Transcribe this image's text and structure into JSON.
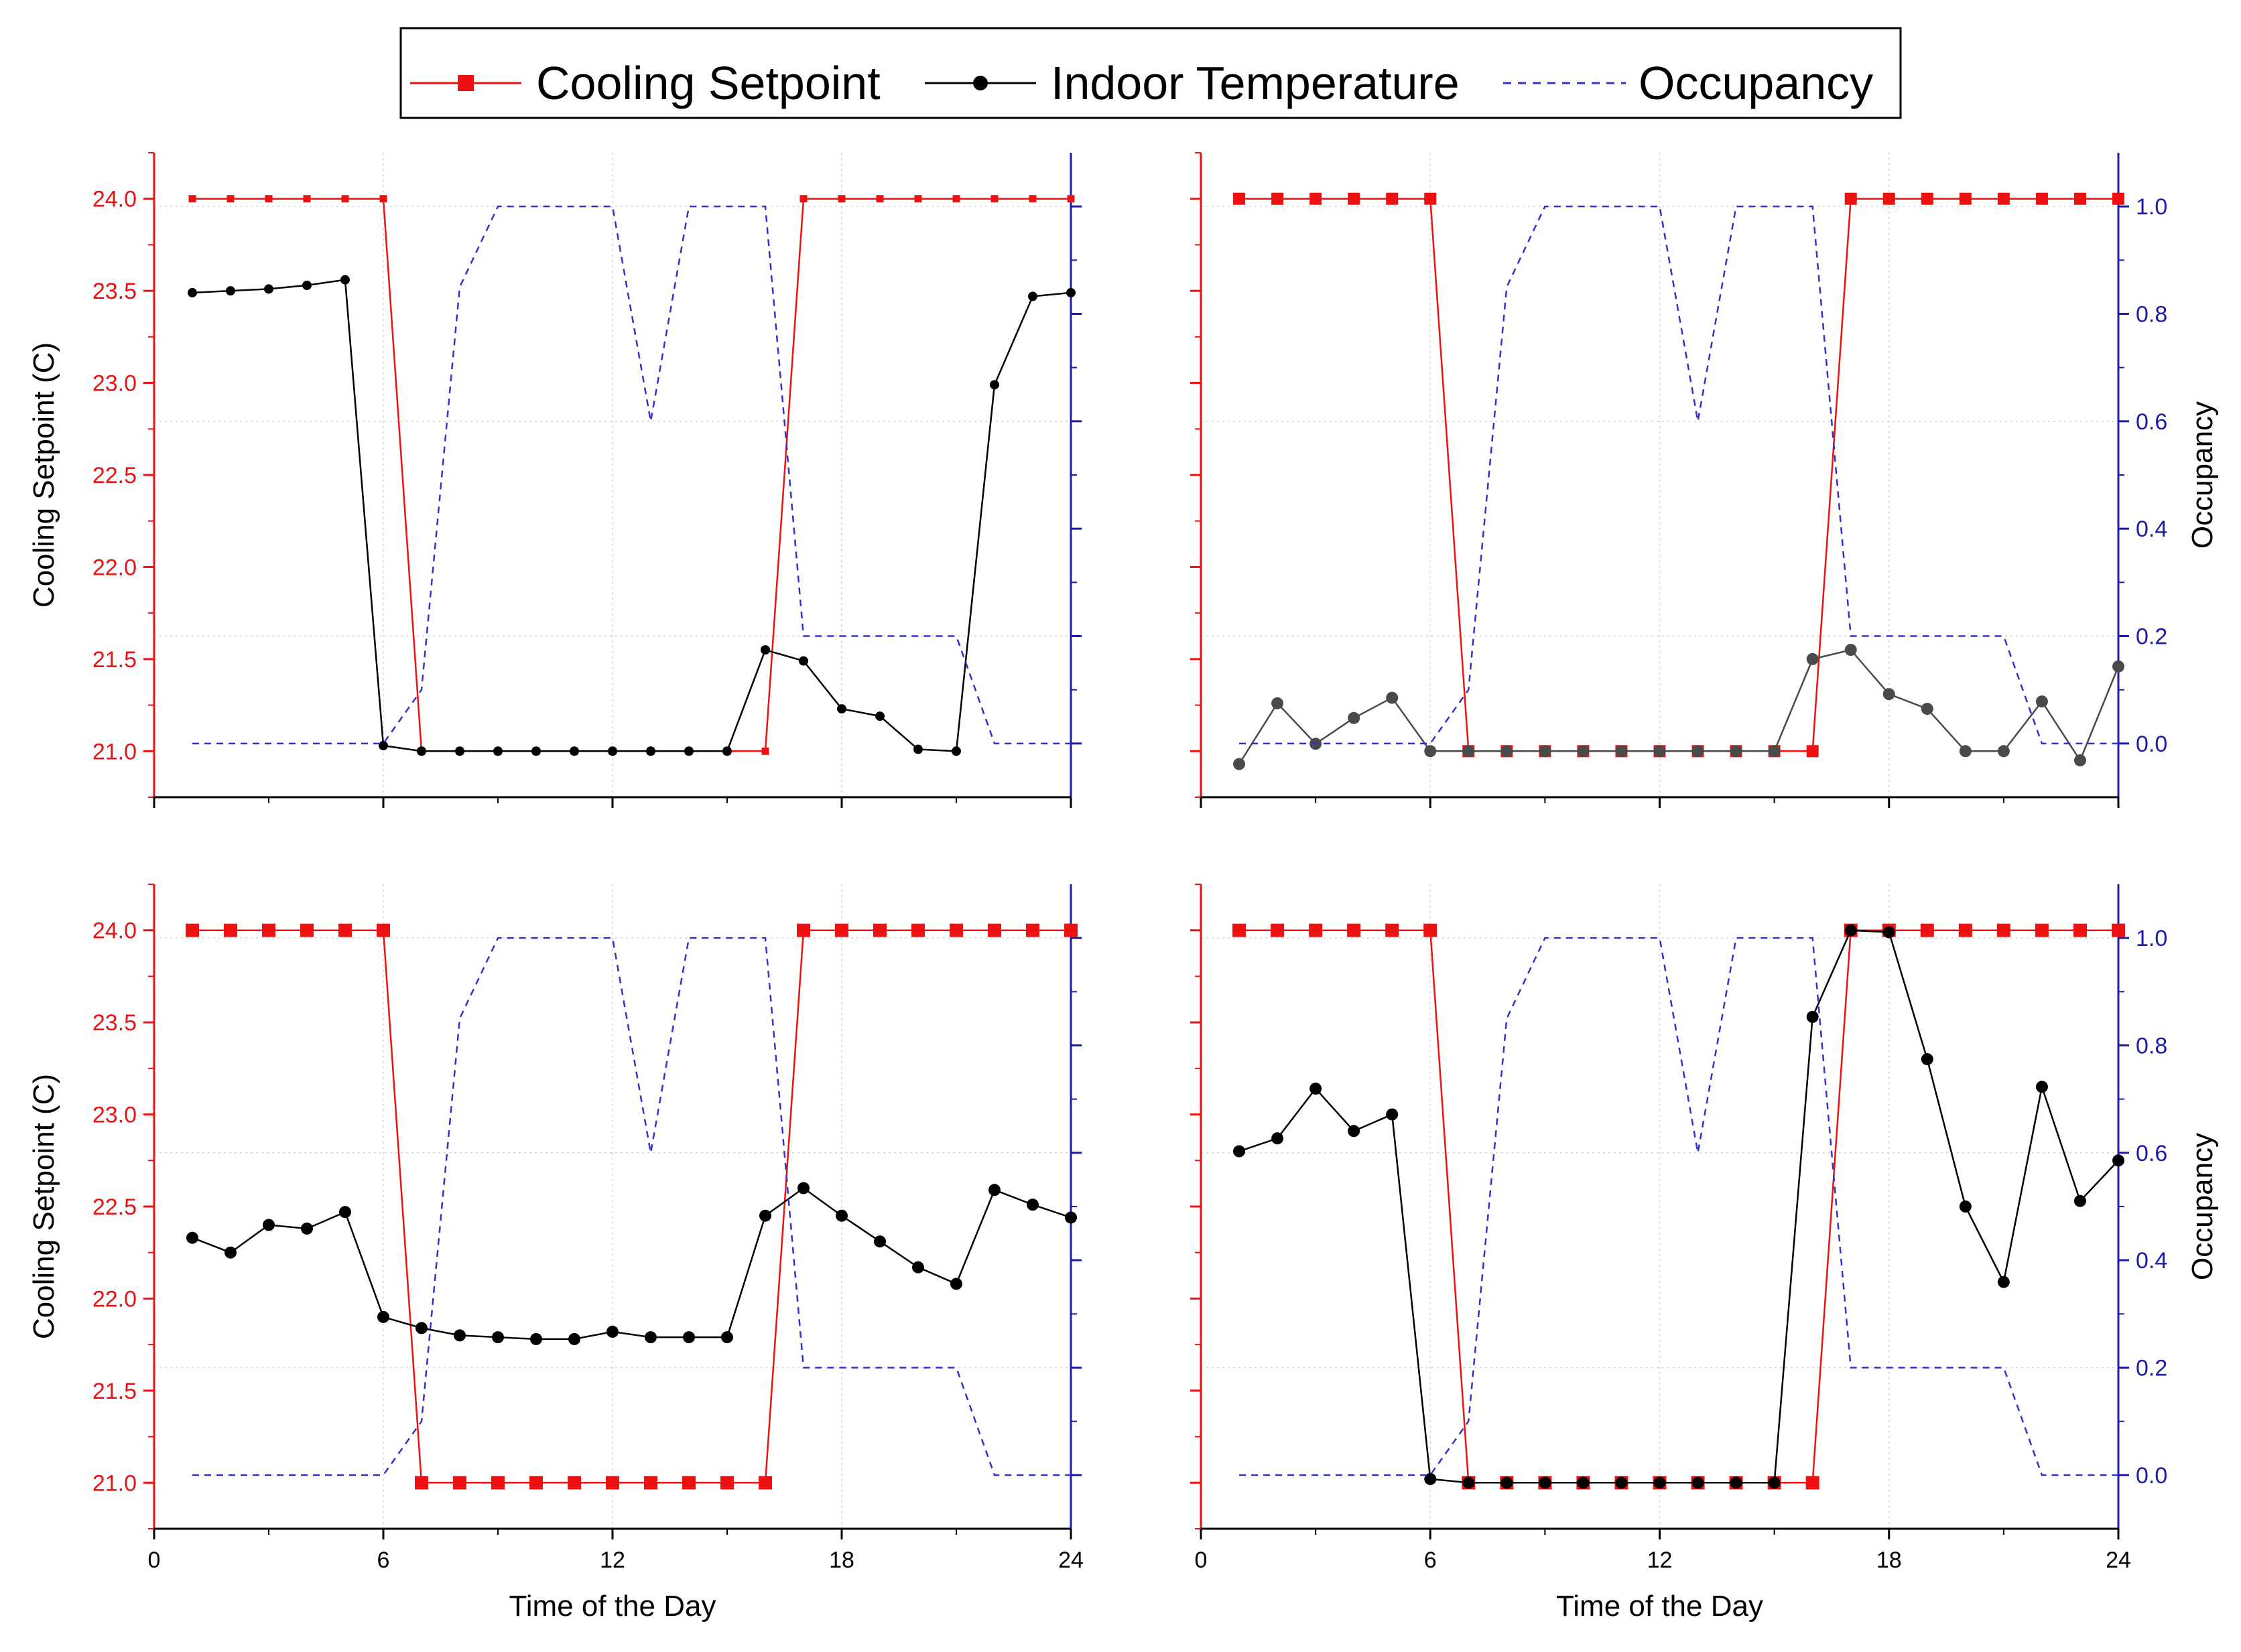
{
  "legend": {
    "cooling": "Cooling Setpoint",
    "indoor": "Indoor Temperature",
    "occupancy": "Occupancy"
  },
  "colors": {
    "cooling": "#ee1111",
    "indoor": "#000000",
    "indoor_alt": "#4a4a4a",
    "occupancy": "#3333cc",
    "left_axis": "#ee1111",
    "right_axis": "#1c1ca8"
  },
  "chart_data": [
    {
      "type": "line",
      "panel": "top-left",
      "xlabel": "",
      "ylabel": "Cooling Setpoint (C)",
      "y2label": "",
      "xlim": [
        0,
        24
      ],
      "ylim": [
        20.75,
        24.25
      ],
      "y2lim": [
        -0.1,
        1.1
      ],
      "xticks": [],
      "yticks": [
        "21.0",
        "21.5",
        "22.0",
        "22.5",
        "23.0",
        "23.5",
        "24.0"
      ],
      "y2ticks": [],
      "series": [
        {
          "name": "Cooling Setpoint",
          "x": [
            1,
            2,
            3,
            4,
            5,
            6,
            7,
            8,
            9,
            10,
            11,
            12,
            13,
            14,
            15,
            16,
            17,
            18,
            19,
            20,
            21,
            22,
            23,
            24
          ],
          "values": [
            24,
            24,
            24,
            24,
            24,
            24,
            21,
            21,
            21,
            21,
            21,
            21,
            21,
            21,
            21,
            21,
            24,
            24,
            24,
            24,
            24,
            24,
            24,
            24
          ]
        },
        {
          "name": "Indoor Temperature",
          "x": [
            1,
            2,
            3,
            4,
            5,
            6,
            7,
            8,
            9,
            10,
            11,
            12,
            13,
            14,
            15,
            16,
            17,
            18,
            19,
            20,
            21,
            22,
            23,
            24
          ],
          "values": [
            23.49,
            23.5,
            23.51,
            23.53,
            23.56,
            21.03,
            21.0,
            21.0,
            21.0,
            21.0,
            21.0,
            21.0,
            21.0,
            21.0,
            21.0,
            21.55,
            21.49,
            21.23,
            21.19,
            21.01,
            21.0,
            22.99,
            23.47,
            23.49
          ]
        },
        {
          "name": "Occupancy",
          "x": [
            1,
            2,
            3,
            4,
            5,
            6,
            7,
            8,
            9,
            10,
            11,
            12,
            13,
            14,
            15,
            16,
            17,
            18,
            19,
            20,
            21,
            22,
            23,
            24
          ],
          "values": [
            0,
            0,
            0,
            0,
            0,
            0,
            0.1,
            0.85,
            1.0,
            1.0,
            1.0,
            1.0,
            0.6,
            1.0,
            1.0,
            1.0,
            0.2,
            0.2,
            0.2,
            0.2,
            0.2,
            0,
            0,
            0
          ]
        }
      ]
    },
    {
      "type": "line",
      "panel": "top-right",
      "xlabel": "",
      "ylabel": "",
      "y2label": "Occupancy",
      "xlim": [
        0,
        24
      ],
      "ylim": [
        20.75,
        24.25
      ],
      "y2lim": [
        -0.1,
        1.1
      ],
      "xticks": [],
      "yticks": [],
      "y2ticks": [
        "0.0",
        "0.2",
        "0.4",
        "0.6",
        "0.8",
        "1.0"
      ],
      "series": [
        {
          "name": "Cooling Setpoint",
          "x": [
            1,
            2,
            3,
            4,
            5,
            6,
            7,
            8,
            9,
            10,
            11,
            12,
            13,
            14,
            15,
            16,
            17,
            18,
            19,
            20,
            21,
            22,
            23,
            24
          ],
          "values": [
            24,
            24,
            24,
            24,
            24,
            24,
            21,
            21,
            21,
            21,
            21,
            21,
            21,
            21,
            21,
            21,
            24,
            24,
            24,
            24,
            24,
            24,
            24,
            24
          ]
        },
        {
          "name": "Indoor Temperature",
          "x": [
            1,
            2,
            3,
            4,
            5,
            6,
            7,
            8,
            9,
            10,
            11,
            12,
            13,
            14,
            15,
            16,
            17,
            18,
            19,
            20,
            21,
            22,
            23,
            24
          ],
          "values": [
            20.93,
            21.26,
            21.04,
            21.18,
            21.29,
            21.0,
            21.0,
            21.0,
            21.0,
            21.0,
            21.0,
            21.0,
            21.0,
            21.0,
            21.0,
            21.5,
            21.55,
            21.31,
            21.23,
            21.0,
            21.0,
            21.27,
            20.95,
            21.46
          ]
        },
        {
          "name": "Occupancy",
          "x": [
            1,
            2,
            3,
            4,
            5,
            6,
            7,
            8,
            9,
            10,
            11,
            12,
            13,
            14,
            15,
            16,
            17,
            18,
            19,
            20,
            21,
            22,
            23,
            24
          ],
          "values": [
            0,
            0,
            0,
            0,
            0,
            0,
            0.1,
            0.85,
            1.0,
            1.0,
            1.0,
            1.0,
            0.6,
            1.0,
            1.0,
            1.0,
            0.2,
            0.2,
            0.2,
            0.2,
            0.2,
            0,
            0,
            0
          ]
        }
      ]
    },
    {
      "type": "line",
      "panel": "bottom-left",
      "xlabel": "Time of the Day",
      "ylabel": "Cooling Setpoint (C)",
      "y2label": "",
      "xlim": [
        0,
        24
      ],
      "ylim": [
        20.75,
        24.25
      ],
      "y2lim": [
        -0.1,
        1.1
      ],
      "xticks": [
        "0",
        "6",
        "12",
        "18",
        "24"
      ],
      "yticks": [
        "21.0",
        "21.5",
        "22.0",
        "22.5",
        "23.0",
        "23.5",
        "24.0"
      ],
      "y2ticks": [],
      "series": [
        {
          "name": "Cooling Setpoint",
          "x": [
            1,
            2,
            3,
            4,
            5,
            6,
            7,
            8,
            9,
            10,
            11,
            12,
            13,
            14,
            15,
            16,
            17,
            18,
            19,
            20,
            21,
            22,
            23,
            24
          ],
          "values": [
            24,
            24,
            24,
            24,
            24,
            24,
            21,
            21,
            21,
            21,
            21,
            21,
            21,
            21,
            21,
            21,
            24,
            24,
            24,
            24,
            24,
            24,
            24,
            24
          ]
        },
        {
          "name": "Indoor Temperature",
          "x": [
            1,
            2,
            3,
            4,
            5,
            6,
            7,
            8,
            9,
            10,
            11,
            12,
            13,
            14,
            15,
            16,
            17,
            18,
            19,
            20,
            21,
            22,
            23,
            24
          ],
          "values": [
            22.33,
            22.25,
            22.4,
            22.38,
            22.47,
            21.9,
            21.84,
            21.8,
            21.79,
            21.78,
            21.78,
            21.82,
            21.79,
            21.79,
            21.79,
            22.45,
            22.6,
            22.45,
            22.31,
            22.17,
            22.08,
            22.59,
            22.51,
            22.44
          ]
        },
        {
          "name": "Occupancy",
          "x": [
            1,
            2,
            3,
            4,
            5,
            6,
            7,
            8,
            9,
            10,
            11,
            12,
            13,
            14,
            15,
            16,
            17,
            18,
            19,
            20,
            21,
            22,
            23,
            24
          ],
          "values": [
            0,
            0,
            0,
            0,
            0,
            0,
            0.1,
            0.85,
            1.0,
            1.0,
            1.0,
            1.0,
            0.6,
            1.0,
            1.0,
            1.0,
            0.2,
            0.2,
            0.2,
            0.2,
            0.2,
            0,
            0,
            0
          ]
        }
      ]
    },
    {
      "type": "line",
      "panel": "bottom-right",
      "xlabel": "Time of the Day",
      "ylabel": "",
      "y2label": "Occupancy",
      "xlim": [
        0,
        24
      ],
      "ylim": [
        20.75,
        24.25
      ],
      "y2lim": [
        -0.1,
        1.1
      ],
      "xticks": [
        "0",
        "6",
        "12",
        "18",
        "24"
      ],
      "yticks": [],
      "y2ticks": [
        "0.0",
        "0.2",
        "0.4",
        "0.6",
        "0.8",
        "1.0"
      ],
      "series": [
        {
          "name": "Cooling Setpoint",
          "x": [
            1,
            2,
            3,
            4,
            5,
            6,
            7,
            8,
            9,
            10,
            11,
            12,
            13,
            14,
            15,
            16,
            17,
            18,
            19,
            20,
            21,
            22,
            23,
            24
          ],
          "values": [
            24,
            24,
            24,
            24,
            24,
            24,
            21,
            21,
            21,
            21,
            21,
            21,
            21,
            21,
            21,
            21,
            24,
            24,
            24,
            24,
            24,
            24,
            24,
            24
          ]
        },
        {
          "name": "Indoor Temperature",
          "x": [
            1,
            2,
            3,
            4,
            5,
            6,
            7,
            8,
            9,
            10,
            11,
            12,
            13,
            14,
            15,
            16,
            17,
            18,
            19,
            20,
            21,
            22,
            23,
            24
          ],
          "values": [
            22.8,
            22.87,
            23.14,
            22.91,
            23.0,
            21.02,
            21.0,
            21.0,
            21.0,
            21.0,
            21.0,
            21.0,
            21.0,
            21.0,
            21.0,
            23.53,
            24.0,
            23.99,
            23.3,
            22.5,
            22.09,
            23.15,
            22.53,
            22.75
          ]
        },
        {
          "name": "Occupancy",
          "x": [
            1,
            2,
            3,
            4,
            5,
            6,
            7,
            8,
            9,
            10,
            11,
            12,
            13,
            14,
            15,
            16,
            17,
            18,
            19,
            20,
            21,
            22,
            23,
            24
          ],
          "values": [
            0,
            0,
            0,
            0,
            0,
            0,
            0.1,
            0.85,
            1.0,
            1.0,
            1.0,
            1.0,
            0.6,
            1.0,
            1.0,
            1.0,
            0.2,
            0.2,
            0.2,
            0.2,
            0.2,
            0,
            0,
            0
          ]
        }
      ]
    }
  ]
}
